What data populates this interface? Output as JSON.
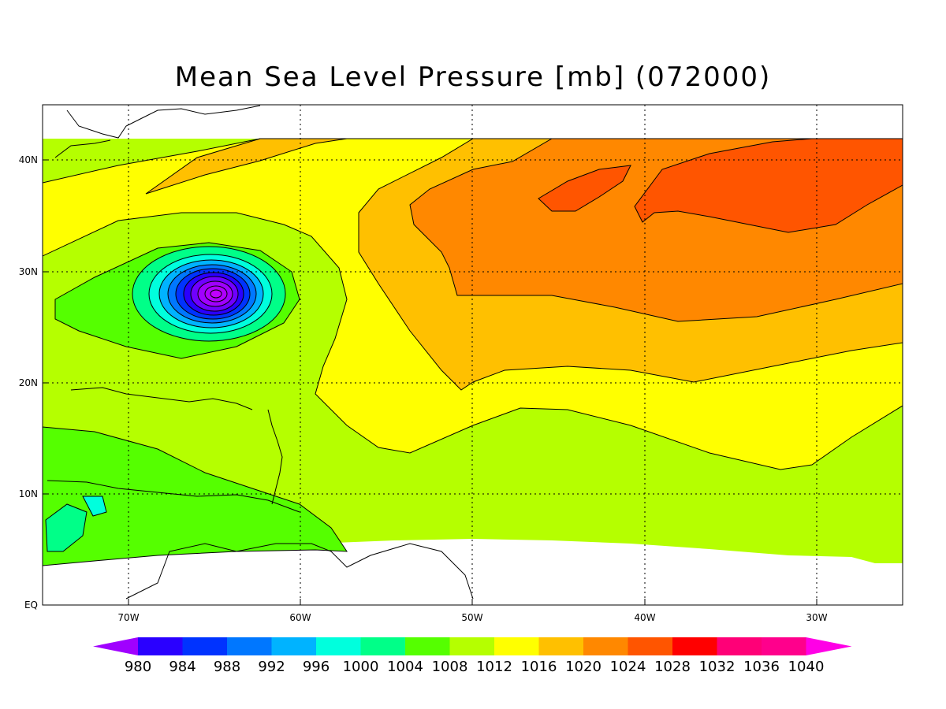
{
  "title": "Mean Sea Level Pressure [mb] (072000)",
  "axes": {
    "x_ticks": [
      "70W",
      "60W",
      "50W",
      "40W",
      "30W"
    ],
    "y_ticks": [
      "40N",
      "30N",
      "20N",
      "10N",
      "EQ"
    ],
    "x_range_deg": [
      -75,
      -25
    ],
    "y_range_deg": [
      0,
      45
    ],
    "grid": "dotted"
  },
  "colorbar": {
    "levels": [
      "980",
      "984",
      "988",
      "992",
      "996",
      "1000",
      "1004",
      "1008",
      "1012",
      "1016",
      "1020",
      "1024",
      "1028",
      "1032",
      "1036",
      "1040"
    ],
    "colors": [
      "#a000ff",
      "#2a00ff",
      "#0033ff",
      "#0077ff",
      "#00b3ff",
      "#00ffdd",
      "#00ff88",
      "#55ff00",
      "#b5ff00",
      "#ffff00",
      "#ffc000",
      "#ff8800",
      "#ff5500",
      "#ff0000",
      "#ff0077",
      "#ff008c",
      "#ff00e6"
    ]
  },
  "chart_data": {
    "type": "heatmap",
    "title": "Mean Sea Level Pressure [mb] (072000)",
    "units": "mb",
    "colorbar_levels": [
      980,
      984,
      988,
      992,
      996,
      1000,
      1004,
      1008,
      1012,
      1016,
      1020,
      1024,
      1028,
      1032,
      1036,
      1040
    ],
    "lon_range": [
      -75,
      -25
    ],
    "lat_range": [
      0,
      45
    ],
    "features": [
      {
        "label": "low-pressure center",
        "lon": -65,
        "lat": 28,
        "min_value_approx": 980
      },
      {
        "label": "high-pressure ridge",
        "lon": -37,
        "lat": 37,
        "max_value_approx": 1028
      }
    ]
  }
}
